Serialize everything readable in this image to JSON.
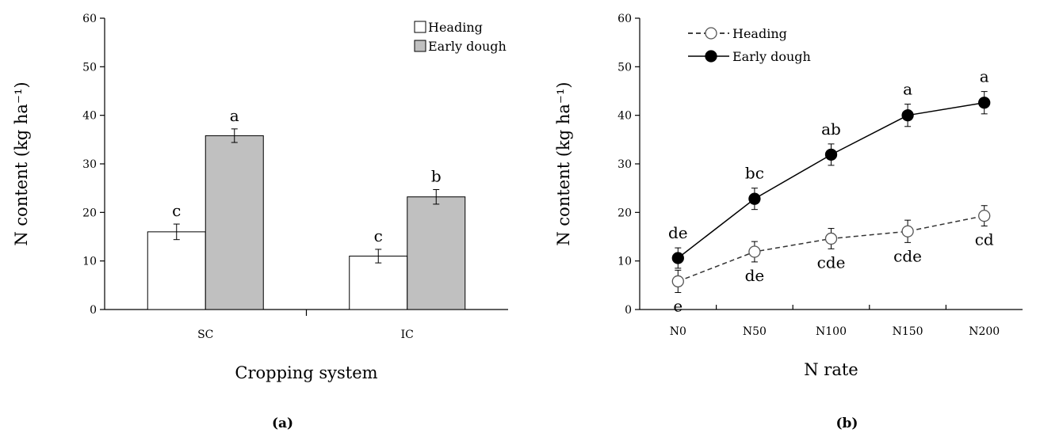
{
  "chart_data": [
    {
      "type": "bar",
      "panel_label": "(a)",
      "xlabel": "Cropping system",
      "ylabel": "N content (kg ha⁻¹)",
      "ylim": [
        0,
        60
      ],
      "yticks": [
        "0",
        "10",
        "20",
        "30",
        "40",
        "50",
        "60"
      ],
      "categories": [
        "SC",
        "IC"
      ],
      "series": [
        {
          "name": "Heading",
          "color": "#ffffff",
          "values": [
            16,
            11
          ],
          "errors": [
            1.6,
            1.4
          ],
          "letters": [
            "c",
            "c"
          ]
        },
        {
          "name": "Early dough",
          "color": "#c0c0c0",
          "values": [
            35.8,
            23.2
          ],
          "errors": [
            1.4,
            1.5
          ],
          "letters": [
            "a",
            "b"
          ]
        }
      ],
      "legend": "top-right",
      "grid": false
    },
    {
      "type": "line",
      "panel_label": "(b)",
      "xlabel": "N rate",
      "ylabel": "N content (kg ha⁻¹)",
      "ylim": [
        0,
        60
      ],
      "yticks": [
        "0",
        "10",
        "20",
        "30",
        "40",
        "50",
        "60"
      ],
      "categories": [
        "N0",
        "N50",
        "N100",
        "N150",
        "N200"
      ],
      "series": [
        {
          "name": "Heading",
          "style": "dashed",
          "marker": "open-circle",
          "values": [
            5.8,
            11.9,
            14.6,
            16.1,
            19.3
          ],
          "errors": [
            2.3,
            2.1,
            2.1,
            2.3,
            2.1
          ],
          "letters": [
            "e",
            "de",
            "cde",
            "cde",
            "cd"
          ]
        },
        {
          "name": "Early dough",
          "style": "solid",
          "marker": "filled-circle",
          "values": [
            10.6,
            22.8,
            31.9,
            40.0,
            42.6
          ],
          "errors": [
            2.1,
            2.2,
            2.2,
            2.3,
            2.3
          ],
          "letters": [
            "de",
            "bc",
            "ab",
            "a",
            "a"
          ]
        }
      ],
      "legend": "top-left",
      "grid": false
    }
  ]
}
